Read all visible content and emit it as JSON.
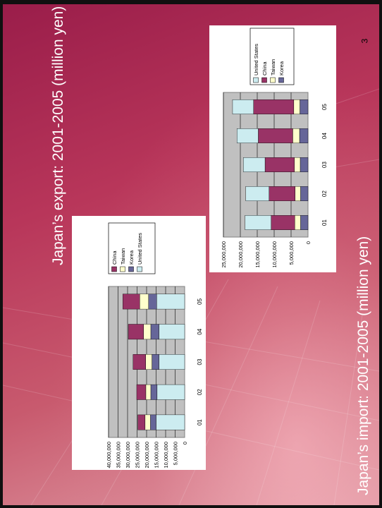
{
  "slide": {
    "title_export": "Japan’s export: 2001-2005 (million yen)",
    "title_import": "Japan’s import: 2001-2005 (million yen)",
    "page_number": "3"
  },
  "colors": {
    "China": "#993366",
    "Taiwan": "#ffffcc",
    "Korea": "#666699",
    "United States": "#ccecf0",
    "plot_bg": "#c0c0c0"
  },
  "chart_data": [
    {
      "type": "bar",
      "stacked": true,
      "orientation": "vertical",
      "title": "Japan’s export: 2001-2005 (million yen)",
      "categories": [
        "01",
        "02",
        "03",
        "04",
        "05"
      ],
      "ylim": [
        0,
        40000000
      ],
      "yticks": [
        "0",
        "5,000,000",
        "10,000,000",
        "15,000,000",
        "20,000,000",
        "25,000,000",
        "30,000,000",
        "35,000,000",
        "40,000,000"
      ],
      "legend_position": "right",
      "legend": [
        "China",
        "Taiwan",
        "Korea",
        "United States"
      ],
      "series": [
        {
          "name": "United States",
          "values": [
            15000000,
            14500000,
            13500000,
            13500000,
            14700000
          ]
        },
        {
          "name": "Korea",
          "values": [
            3000000,
            3300000,
            3700000,
            4300000,
            4300000
          ]
        },
        {
          "name": "Taiwan",
          "values": [
            2800000,
            2600000,
            3300000,
            3800000,
            4600000
          ]
        },
        {
          "name": "China",
          "values": [
            3800000,
            4800000,
            6600000,
            8000000,
            8900000
          ]
        }
      ]
    },
    {
      "type": "bar",
      "stacked": true,
      "orientation": "vertical",
      "title": "Japan’s import: 2001-2005 (million yen)",
      "categories": [
        "01",
        "02",
        "03",
        "04",
        "05"
      ],
      "ylim": [
        0,
        25000000
      ],
      "yticks": [
        "0",
        "5,000,000",
        "10,000,000",
        "15,000,000",
        "20,000,000",
        "25,000,000"
      ],
      "legend_position": "right",
      "legend": [
        "United States",
        "China",
        "Taiwan",
        "Korea"
      ],
      "series": [
        {
          "name": "Korea",
          "values": [
            2200000,
            2200000,
            2300000,
            2500000,
            2400000
          ]
        },
        {
          "name": "Taiwan",
          "values": [
            1700000,
            1600000,
            1700000,
            2000000,
            1800000
          ]
        },
        {
          "name": "China",
          "values": [
            7000000,
            7700000,
            8700000,
            10200000,
            11900000
          ]
        },
        {
          "name": "United States",
          "values": [
            7700000,
            6900000,
            6400000,
            6300000,
            6200000
          ]
        }
      ]
    }
  ]
}
